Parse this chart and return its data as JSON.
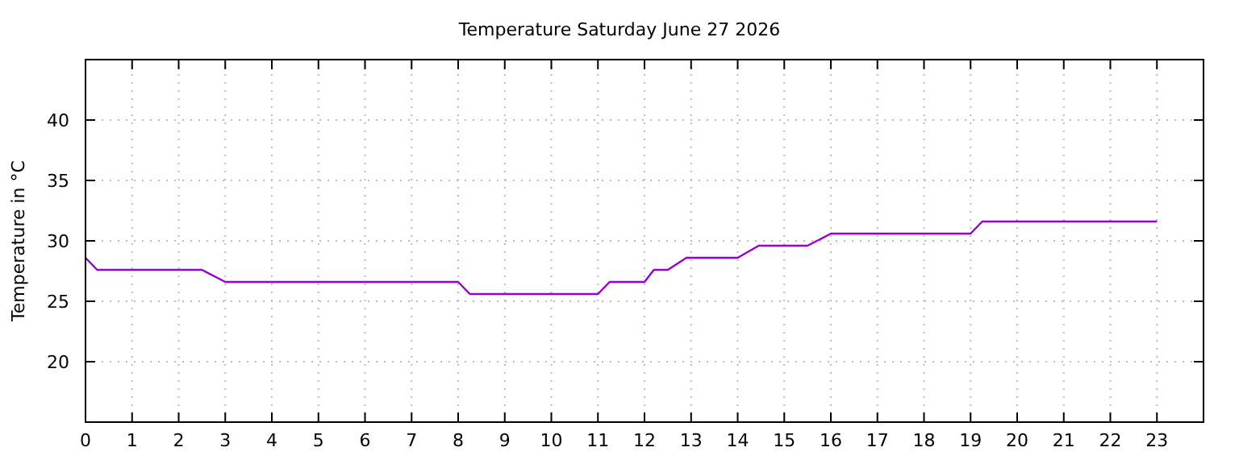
{
  "chart_data": {
    "type": "line",
    "title": "Temperature Saturday June 27 2026",
    "ylabel": "Temperature in °C",
    "x": [
      0,
      0.25,
      2.5,
      3,
      8,
      8.25,
      11,
      11.25,
      12,
      12.2,
      12.5,
      12.9,
      14,
      14.45,
      15.5,
      16,
      19,
      19.25,
      23
    ],
    "series": [
      {
        "color": "#9400d3",
        "values": [
          28.6,
          27.6,
          27.6,
          26.6,
          26.6,
          25.6,
          25.6,
          26.6,
          26.6,
          27.6,
          27.6,
          28.6,
          28.6,
          29.6,
          29.6,
          30.6,
          30.6,
          31.6,
          31.6
        ]
      }
    ],
    "xlim": [
      0,
      24
    ],
    "xticks": [
      0,
      1,
      2,
      3,
      4,
      5,
      6,
      7,
      8,
      9,
      10,
      11,
      12,
      13,
      14,
      15,
      16,
      17,
      18,
      19,
      20,
      21,
      22,
      23
    ],
    "ylim": [
      15,
      45
    ],
    "yticks": [
      20,
      25,
      30,
      35,
      40
    ],
    "grid": true,
    "marker": "none",
    "line_style": "solid"
  }
}
